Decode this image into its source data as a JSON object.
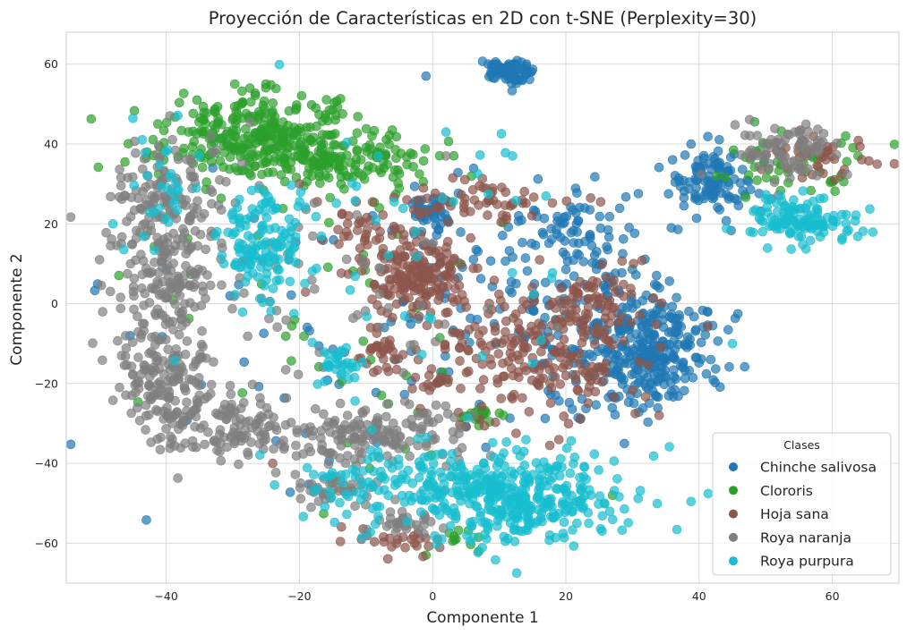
{
  "chart_data": {
    "type": "scatter",
    "title": "Proyección de Características en 2D con t-SNE (Perplexity=30)",
    "xlabel": "Componente 1",
    "ylabel": "Componente 2",
    "xlim": [
      -55,
      70
    ],
    "ylim": [
      -70,
      68
    ],
    "xticks": [
      -40,
      -20,
      0,
      20,
      40,
      60
    ],
    "yticks": [
      -60,
      -40,
      -20,
      0,
      20,
      40,
      60
    ],
    "xtick_labels": [
      "−40",
      "−20",
      "0",
      "20",
      "40",
      "60"
    ],
    "ytick_labels": [
      "−60",
      "−40",
      "−20",
      "0",
      "20",
      "40",
      "60"
    ],
    "grid": true,
    "legend": {
      "title": "Clases",
      "position": "lower-right"
    },
    "series": [
      {
        "name": "Chinche salivosa",
        "color": "#1f77b4",
        "clusters": [
          {
            "cx": 11,
            "cy": 58,
            "sx": 1.8,
            "sy": 1.6,
            "n": 80
          },
          {
            "cx": 42,
            "cy": 31,
            "sx": 3,
            "sy": 3.5,
            "n": 110
          },
          {
            "cx": 0,
            "cy": 23,
            "sx": 2,
            "sy": 2.5,
            "n": 45
          },
          {
            "cx": 32,
            "cy": -12,
            "sx": 5,
            "sy": 7,
            "n": 330
          },
          {
            "cx": 22,
            "cy": 17,
            "sx": 6,
            "sy": 8,
            "n": 90
          },
          {
            "cx": 15,
            "cy": 0,
            "sx": 12,
            "sy": 14,
            "n": 100
          },
          {
            "cx": -20,
            "cy": -10,
            "sx": 20,
            "sy": 20,
            "n": 45
          }
        ],
        "points": [
          [
            -1,
            57
          ],
          [
            40,
            34
          ],
          [
            -9,
            22
          ],
          [
            -33,
            34
          ],
          [
            8,
            -36
          ]
        ]
      },
      {
        "name": "Clororis",
        "color": "#2ca02c",
        "clusters": [
          {
            "cx": -27,
            "cy": 42,
            "sx": 7,
            "sy": 5,
            "n": 300
          },
          {
            "cx": -13,
            "cy": 36,
            "sx": 6,
            "sy": 3.5,
            "n": 140
          },
          {
            "cx": 53,
            "cy": 35,
            "sx": 6,
            "sy": 4,
            "n": 45
          },
          {
            "cx": 7,
            "cy": -28,
            "sx": 1.2,
            "sy": 1.2,
            "n": 22
          },
          {
            "cx": 4,
            "cy": -58,
            "sx": 1.5,
            "sy": 1.2,
            "n": 10
          },
          {
            "cx": -20,
            "cy": 0,
            "sx": 14,
            "sy": 25,
            "n": 50
          }
        ],
        "points": [
          [
            -1,
            -63
          ],
          [
            62,
            42
          ],
          [
            27,
            -48
          ],
          [
            -8,
            24
          ]
        ]
      },
      {
        "name": "Hoja sana",
        "color": "#8c564b",
        "clusters": [
          {
            "cx": -2,
            "cy": 7,
            "sx": 4,
            "sy": 5,
            "n": 180
          },
          {
            "cx": 14,
            "cy": -12,
            "sx": 8,
            "sy": 9,
            "n": 220
          },
          {
            "cx": 25,
            "cy": 0,
            "sx": 4,
            "sy": 5,
            "n": 70
          },
          {
            "cx": 8,
            "cy": 26,
            "sx": 6,
            "sy": 2.5,
            "n": 60
          },
          {
            "cx": -8,
            "cy": -12,
            "sx": 1.5,
            "sy": 2.5,
            "n": 30
          },
          {
            "cx": 0,
            "cy": -20,
            "sx": 1.5,
            "sy": 1,
            "n": 15
          },
          {
            "cx": -6,
            "cy": -59,
            "sx": 4,
            "sy": 2,
            "n": 25
          },
          {
            "cx": 58,
            "cy": 37,
            "sx": 4,
            "sy": 3,
            "n": 45
          },
          {
            "cx": -10,
            "cy": 18,
            "sx": 4,
            "sy": 5,
            "n": 40
          }
        ],
        "points": [
          [
            -24,
            -40
          ],
          [
            34,
            -28
          ],
          [
            -20,
            30
          ]
        ]
      },
      {
        "name": "Roya naranja",
        "color": "#7f7f7f",
        "clusters": [
          {
            "cx": -40,
            "cy": 25,
            "sx": 4,
            "sy": 10,
            "n": 170
          },
          {
            "cx": -40,
            "cy": 0,
            "sx": 4,
            "sy": 8,
            "n": 120
          },
          {
            "cx": -40,
            "cy": -20,
            "sx": 4,
            "sy": 6,
            "n": 120
          },
          {
            "cx": -32,
            "cy": -30,
            "sx": 5,
            "sy": 4,
            "n": 110
          },
          {
            "cx": -10,
            "cy": -33,
            "sx": 8,
            "sy": 4,
            "n": 170
          },
          {
            "cx": -15,
            "cy": -47,
            "sx": 3,
            "sy": 2,
            "n": 40
          },
          {
            "cx": -5,
            "cy": -55,
            "sx": 3,
            "sy": 2,
            "n": 30
          },
          {
            "cx": 53,
            "cy": 39,
            "sx": 4,
            "sy": 3.5,
            "n": 75
          },
          {
            "cx": -20,
            "cy": 0,
            "sx": 15,
            "sy": 18,
            "n": 70
          }
        ],
        "points": [
          [
            -50,
            11
          ],
          [
            -47,
            -21
          ],
          [
            2,
            37
          ]
        ]
      },
      {
        "name": "Roya purpura",
        "color": "#17becf",
        "clusters": [
          {
            "cx": -25,
            "cy": 15,
            "sx": 3.5,
            "sy": 7,
            "n": 130
          },
          {
            "cx": 12,
            "cy": -48,
            "sx": 8,
            "sy": 6,
            "n": 380
          },
          {
            "cx": -8,
            "cy": -45,
            "sx": 6,
            "sy": 3.5,
            "n": 80
          },
          {
            "cx": 55,
            "cy": 21,
            "sx": 4,
            "sy": 3,
            "n": 120
          },
          {
            "cx": -14,
            "cy": -15,
            "sx": 1.5,
            "sy": 2,
            "n": 30
          },
          {
            "cx": -40,
            "cy": 30,
            "sx": 3,
            "sy": 8,
            "n": 30
          },
          {
            "cx": -5,
            "cy": 10,
            "sx": 15,
            "sy": 20,
            "n": 50
          }
        ],
        "points": [
          [
            2,
            43
          ],
          [
            45,
            -10
          ],
          [
            12,
            37
          ],
          [
            -48,
            20
          ]
        ]
      }
    ]
  }
}
